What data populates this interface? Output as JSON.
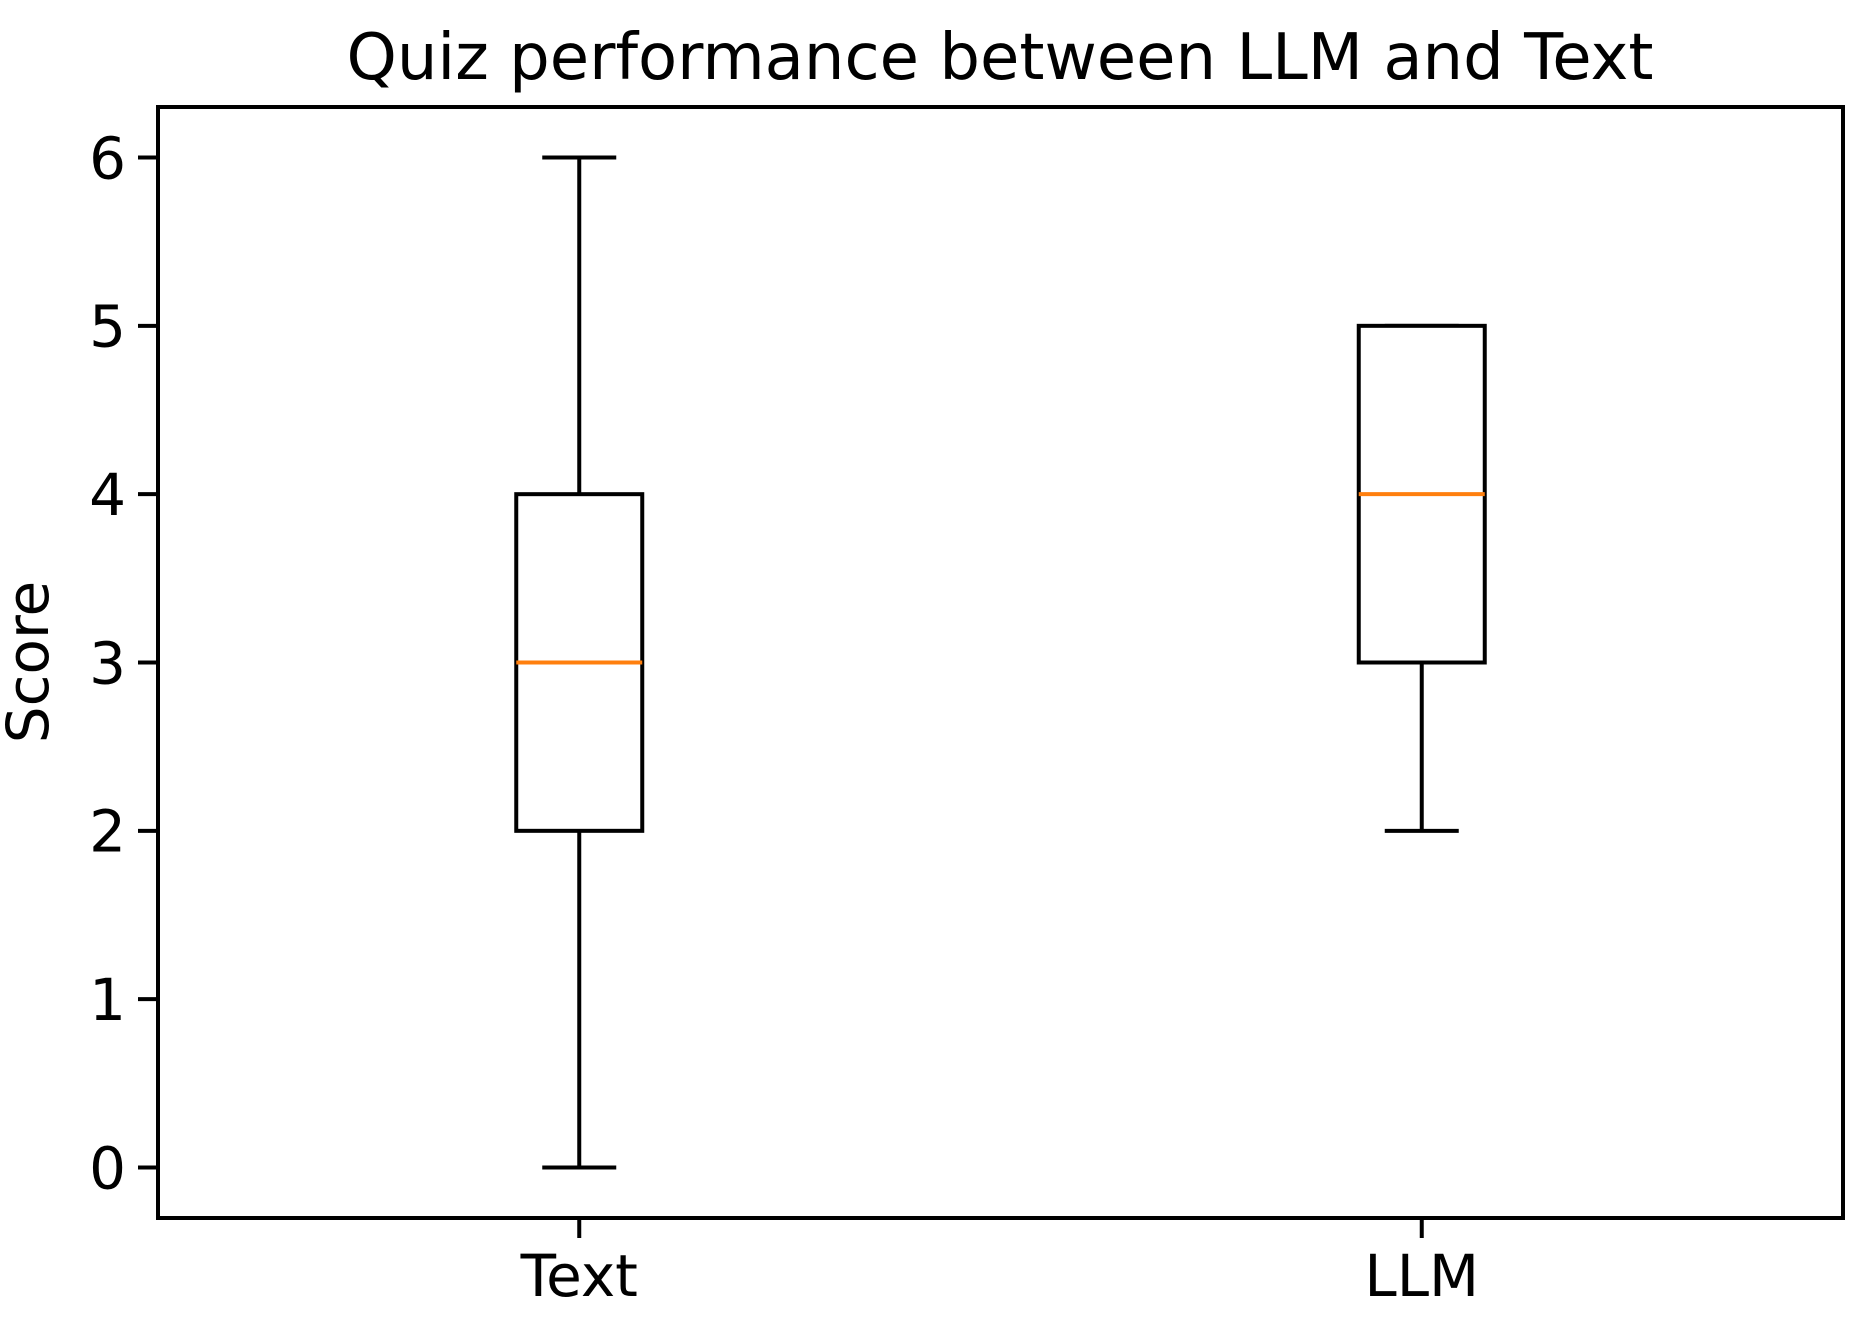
{
  "chart_data": {
    "type": "boxplot",
    "title": "Quiz performance between LLM and Text",
    "xlabel": "",
    "ylabel": "Score",
    "categories": [
      "Text",
      "LLM"
    ],
    "positions": [
      1,
      2
    ],
    "series": [
      {
        "name": "Text",
        "whisker_low": 0,
        "q1": 2,
        "median": 3,
        "q3": 4,
        "whisker_high": 6
      },
      {
        "name": "LLM",
        "whisker_low": 2,
        "q1": 3,
        "median": 4,
        "q3": 5,
        "whisker_high": 5
      }
    ],
    "yticks": [
      0,
      1,
      2,
      3,
      4,
      5,
      6
    ],
    "ylim": [
      -0.3,
      6.3
    ],
    "xlim": [
      0.5,
      2.5
    ],
    "grid": false,
    "legend": "none",
    "colors": {
      "box": "#000000",
      "whisker": "#000000",
      "cap": "#000000",
      "median": "#ff7f0e",
      "spine": "#000000",
      "text": "#000000",
      "background": "#ffffff"
    }
  }
}
